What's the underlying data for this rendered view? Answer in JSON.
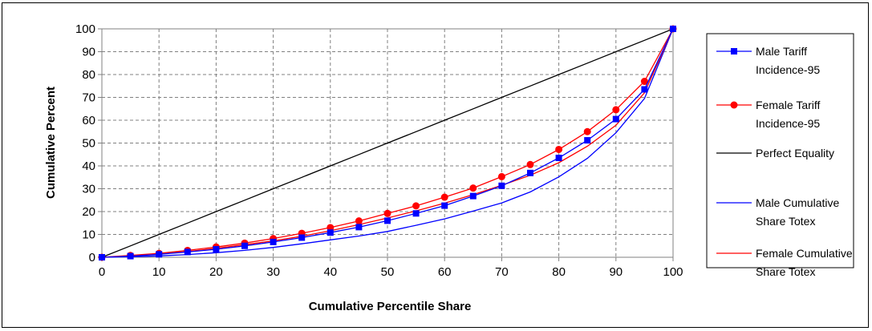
{
  "chart_data": {
    "type": "line",
    "title": "",
    "xlabel": "Cumulative Percentile Share",
    "ylabel": "Cumulative Percent",
    "xlim": [
      0,
      100
    ],
    "ylim": [
      0,
      100
    ],
    "x_ticks": [
      "0",
      "10",
      "20",
      "30",
      "40",
      "50",
      "60",
      "70",
      "80",
      "90",
      "100"
    ],
    "y_ticks": [
      "0",
      "10",
      "20",
      "30",
      "40",
      "50",
      "60",
      "70",
      "80",
      "90",
      "100"
    ],
    "grid": "dashed",
    "legend_position": "right",
    "x": [
      0,
      5,
      10,
      15,
      20,
      25,
      30,
      35,
      40,
      45,
      50,
      55,
      60,
      65,
      70,
      75,
      80,
      85,
      90,
      95,
      100
    ],
    "series": [
      {
        "name": "Male Tariff Incidence-95",
        "legend_lines": [
          "Male Tariff",
          "Incidence-95"
        ],
        "color": "#0000ff",
        "marker": "square",
        "values": [
          0,
          0.5,
          1.3,
          2.3,
          3.5,
          5,
          6.7,
          8.6,
          10.8,
          13.2,
          16,
          19.2,
          22.6,
          26.8,
          31.3,
          36.9,
          43.5,
          51.2,
          60.5,
          73.5,
          100
        ]
      },
      {
        "name": "Female Tariff Incidence-95",
        "legend_lines": [
          "Female Tariff",
          "Incidence-95"
        ],
        "color": "#ff0000",
        "marker": "circle",
        "values": [
          0,
          0.8,
          1.7,
          3,
          4.5,
          6.2,
          8.2,
          10.5,
          13,
          15.9,
          19.2,
          22.5,
          26.3,
          30.3,
          35.3,
          40.6,
          47.2,
          55,
          64.6,
          77,
          100
        ]
      },
      {
        "name": "Perfect Equality",
        "legend_lines": [
          "Perfect Equality"
        ],
        "color": "#000000",
        "marker": "none",
        "values": [
          0,
          5,
          10,
          15,
          20,
          25,
          30,
          35,
          40,
          45,
          50,
          55,
          60,
          65,
          70,
          75,
          80,
          85,
          90,
          95,
          100
        ]
      },
      {
        "name": "Male Cumulative Share Totex",
        "legend_lines": [
          "Male Cumulative",
          "Share Totex"
        ],
        "color": "#0000ff",
        "marker": "none",
        "values": [
          0,
          0.2,
          0.6,
          1.2,
          2,
          3,
          4.3,
          5.9,
          7.6,
          9.3,
          11.3,
          14,
          16.8,
          20.2,
          23.8,
          28.6,
          35.2,
          43.3,
          54.5,
          69.5,
          100
        ]
      },
      {
        "name": "Female Cumulative Share Totex",
        "legend_lines": [
          "Female Cumulative",
          "Share Totex"
        ],
        "color": "#ff0000",
        "marker": "none",
        "values": [
          0,
          0.6,
          1.4,
          2.5,
          3.9,
          5.5,
          7.2,
          9.2,
          11.6,
          14.3,
          17.2,
          20.3,
          23.7,
          27.4,
          31.5,
          35.9,
          41.4,
          48.6,
          57.8,
          72,
          100
        ]
      }
    ]
  }
}
